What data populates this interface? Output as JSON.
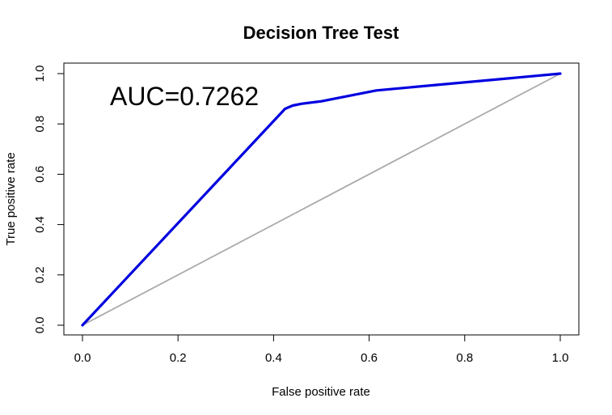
{
  "chart_data": {
    "type": "line",
    "title": "Decision Tree Test",
    "xlabel": "False positive rate",
    "ylabel": "True positive rate",
    "xlim": [
      0,
      1
    ],
    "ylim": [
      0,
      1
    ],
    "x_ticks": [
      "0.0",
      "0.2",
      "0.4",
      "0.6",
      "0.8",
      "1.0"
    ],
    "y_ticks": [
      "0.0",
      "0.2",
      "0.4",
      "0.6",
      "0.8",
      "1.0"
    ],
    "annotation": "AUC=0.7262",
    "grid": false,
    "series": [
      {
        "color": "#0000e0",
        "x": [
          0.0,
          0.424,
          0.44,
          0.458,
          0.5,
          0.615,
          1.0
        ],
        "y": [
          0.0,
          0.86,
          0.873,
          0.88,
          0.89,
          0.933,
          1.0
        ]
      },
      {
        "color": "#aaaaaa",
        "x": [
          0.0,
          1.0
        ],
        "y": [
          0.0,
          1.0
        ]
      }
    ]
  }
}
